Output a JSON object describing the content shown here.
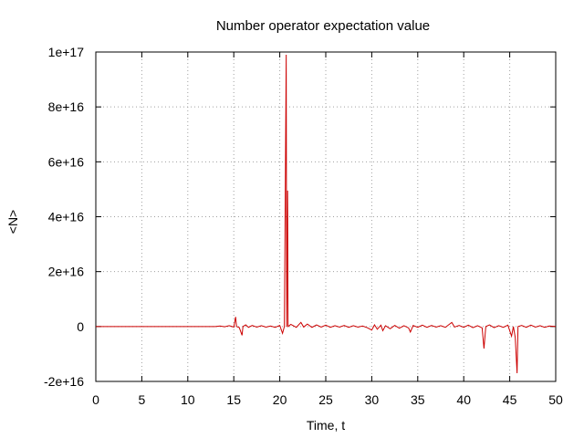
{
  "chart_data": {
    "type": "line",
    "title": "Number operator expectation value",
    "xlabel": "Time, t",
    "ylabel": "<N>",
    "xlim": [
      0,
      50
    ],
    "ylim": [
      -2e+16,
      1e+17
    ],
    "x_ticks": [
      0,
      5,
      10,
      15,
      20,
      25,
      30,
      35,
      40,
      45,
      50
    ],
    "x_tick_labels": [
      "0",
      "5",
      "10",
      "15",
      "20",
      "25",
      "30",
      "35",
      "40",
      "45",
      "50"
    ],
    "y_ticks": [
      -2e+16,
      0,
      2e+16,
      4e+16,
      6e+16,
      8e+16,
      1e+17
    ],
    "y_tick_labels": [
      "-2e+16",
      "0",
      "2e+16",
      "4e+16",
      "6e+16",
      "8e+16",
      "1e+17"
    ],
    "grid": true,
    "series_color": "#cc0000",
    "grid_color": "#a0a0a0",
    "series": [
      {
        "values_xy": [
          [
            0,
            0
          ],
          [
            13.0,
            0
          ],
          [
            13.5,
            200000000000000.0
          ],
          [
            14.0,
            -100000000000000.0
          ],
          [
            14.5,
            300000000000000.0
          ],
          [
            15.0,
            -200000000000000.0
          ],
          [
            15.2,
            3500000000000000.0
          ],
          [
            15.3,
            0
          ],
          [
            15.6,
            -400000000000000.0
          ],
          [
            15.9,
            -3200000000000000.0
          ],
          [
            16.0,
            0
          ],
          [
            16.3,
            600000000000000.0
          ],
          [
            16.6,
            -300000000000000.0
          ],
          [
            17.0,
            400000000000000.0
          ],
          [
            17.5,
            -200000000000000.0
          ],
          [
            18.0,
            300000000000000.0
          ],
          [
            18.5,
            -200000000000000.0
          ],
          [
            19.0,
            200000000000000.0
          ],
          [
            19.5,
            -300000000000000.0
          ],
          [
            20.0,
            400000000000000.0
          ],
          [
            20.3,
            -2500000000000000.0
          ],
          [
            20.5,
            0
          ],
          [
            20.7,
            9.9e+16
          ],
          [
            20.75,
            0
          ],
          [
            20.85,
            4.95e+16
          ],
          [
            20.9,
            0
          ],
          [
            21.2,
            800000000000000.0
          ],
          [
            21.8,
            -300000000000000.0
          ],
          [
            22.3,
            1500000000000000.0
          ],
          [
            22.6,
            -200000000000000.0
          ],
          [
            23.0,
            900000000000000.0
          ],
          [
            23.5,
            -300000000000000.0
          ],
          [
            24.0,
            600000000000000.0
          ],
          [
            24.5,
            -200000000000000.0
          ],
          [
            25.0,
            500000000000000.0
          ],
          [
            25.5,
            -300000000000000.0
          ],
          [
            26.0,
            300000000000000.0
          ],
          [
            26.5,
            -200000000000000.0
          ],
          [
            27.0,
            400000000000000.0
          ],
          [
            27.5,
            -300000000000000.0
          ],
          [
            28.0,
            300000000000000.0
          ],
          [
            28.5,
            -200000000000000.0
          ],
          [
            29.0,
            200000000000000.0
          ],
          [
            29.5,
            -400000000000000.0
          ],
          [
            30.0,
            -1300000000000000.0
          ],
          [
            30.3,
            600000000000000.0
          ],
          [
            30.6,
            -1000000000000000.0
          ],
          [
            31.0,
            500000000000000.0
          ],
          [
            31.2,
            -1500000000000000.0
          ],
          [
            31.5,
            300000000000000.0
          ],
          [
            32.0,
            -800000000000000.0
          ],
          [
            32.5,
            400000000000000.0
          ],
          [
            33.0,
            -600000000000000.0
          ],
          [
            33.5,
            300000000000000.0
          ],
          [
            34.0,
            -500000000000000.0
          ],
          [
            34.2,
            -2000000000000000.0
          ],
          [
            34.5,
            400000000000000.0
          ],
          [
            35.0,
            -300000000000000.0
          ],
          [
            35.5,
            500000000000000.0
          ],
          [
            36.0,
            -300000000000000.0
          ],
          [
            36.5,
            400000000000000.0
          ],
          [
            37.0,
            -200000000000000.0
          ],
          [
            37.5,
            300000000000000.0
          ],
          [
            38.0,
            -300000000000000.0
          ],
          [
            38.7,
            1500000000000000.0
          ],
          [
            39.0,
            -200000000000000.0
          ],
          [
            39.5,
            400000000000000.0
          ],
          [
            40.0,
            -300000000000000.0
          ],
          [
            40.5,
            500000000000000.0
          ],
          [
            41.0,
            -400000000000000.0
          ],
          [
            41.5,
            300000000000000.0
          ],
          [
            42.0,
            -500000000000000.0
          ],
          [
            42.2,
            -8000000000000000.0
          ],
          [
            42.4,
            0
          ],
          [
            42.8,
            600000000000000.0
          ],
          [
            43.3,
            -400000000000000.0
          ],
          [
            43.8,
            300000000000000.0
          ],
          [
            44.3,
            -300000000000000.0
          ],
          [
            44.8,
            500000000000000.0
          ],
          [
            45.2,
            -3500000000000000.0
          ],
          [
            45.4,
            0
          ],
          [
            45.6,
            -4000000000000000.0
          ],
          [
            45.8,
            -1.7e+16
          ],
          [
            45.9,
            0
          ],
          [
            46.3,
            400000000000000.0
          ],
          [
            46.8,
            -300000000000000.0
          ],
          [
            47.3,
            500000000000000.0
          ],
          [
            47.8,
            -200000000000000.0
          ],
          [
            48.3,
            300000000000000.0
          ],
          [
            48.8,
            -300000000000000.0
          ],
          [
            49.3,
            200000000000000.0
          ],
          [
            50.0,
            0
          ]
        ]
      }
    ]
  }
}
